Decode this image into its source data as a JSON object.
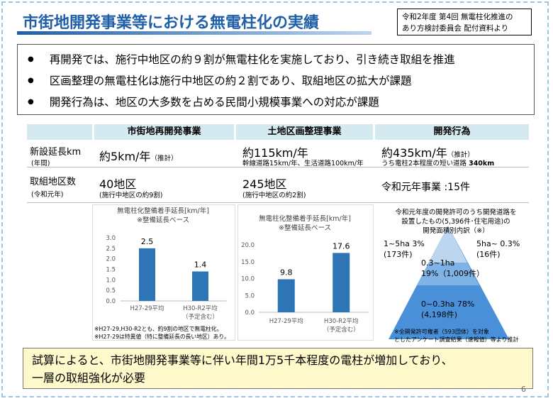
{
  "header": {
    "title": "市街地開発事業等における無電柱化の実績",
    "source": [
      "令和2年度 第4回 無電柱化推進の",
      "あり方検討委員会 配付資料より"
    ]
  },
  "bullets": [
    "再開発では、施行中地区の約９割が無電柱化を実施しており、引き続き取組を推進",
    "区画整理の無電柱化は施行中地区の約２割であり、取組地区の拡大が課題",
    "開発行為は、地区の大多数を占める民間小規模事業への対応が課題"
  ],
  "table": {
    "headers": [
      "市街地再開発事業",
      "土地区画整理事業",
      "開発行為"
    ],
    "rows": [
      {
        "label": "新設延長km",
        "sub": "(年間)",
        "cells": [
          {
            "main": "約5km/年",
            "suffix": "（推計）"
          },
          {
            "main": "約115km/年",
            "note": "幹線道路15km/年、生活道路100km/年"
          },
          {
            "main": "約435km/年",
            "suffix": "（推計）",
            "note": "うち電柱2本程度の短い道路",
            "note_bold": "340km"
          }
        ]
      },
      {
        "label": "取組地区数",
        "sub": "(令和元年)",
        "cells": [
          {
            "main": "40地区",
            "note": "(施行中地区の約9割)"
          },
          {
            "main": "245地区",
            "note": "(施行中地区の約2割)"
          },
          {
            "main": "令和元年事業 :15件"
          }
        ]
      }
    ]
  },
  "charts": [
    {
      "type": "bar",
      "title": [
        "無電柱化整備着手延長[km/年]",
        "※整備延長ベース"
      ],
      "categories": [
        "H27-29平均",
        "H30-R2平均"
      ],
      "category_notes": [
        null,
        "（予定含む）"
      ],
      "values": [
        2.5,
        1.4
      ],
      "color": "#2e75b6",
      "ylim": [
        0,
        3
      ],
      "yticks": [
        {
          "value": 0,
          "label": "0.0"
        },
        {
          "value": 0.5,
          "label": "0.5"
        },
        {
          "value": 1,
          "label": "1.0"
        },
        {
          "value": 1.5,
          "label": "1.5"
        },
        {
          "value": 2,
          "label": "2.0"
        },
        {
          "value": 2.5,
          "label": "2.5"
        },
        {
          "value": 3,
          "label": "3.0"
        }
      ],
      "notes": [
        "※H27-29,H30-R2とも、約9割の地区で無電柱化。",
        "※H27-29は特異値（特に整備延長の長い地区）あり。"
      ]
    },
    {
      "type": "bar",
      "title": [
        "無電柱化整備着手延長[km/年]",
        "※整備延長ベース"
      ],
      "categories": [
        "H27-29平均",
        "H30-R2平均"
      ],
      "category_notes": [
        null,
        "（予定含む）"
      ],
      "values": [
        9.8,
        17.6
      ],
      "color": "#2e75b6",
      "ylim": [
        0,
        20
      ],
      "yticks": [
        {
          "value": 0,
          "label": "0.0"
        },
        {
          "value": 5,
          "label": "5.0"
        },
        {
          "value": 10,
          "label": "10.0"
        },
        {
          "value": 15,
          "label": "15.0"
        },
        {
          "value": 20,
          "label": "20.0"
        }
      ]
    }
  ],
  "pyramid": {
    "title": [
      "令和元年度の開発許可のうち開発道路を",
      "設置したもの(5,396件･住宅用途)の",
      "開発面積別内訳（※）"
    ],
    "segments": [
      [
        "1~5ha 3%",
        "(173件)"
      ],
      [
        "5ha~ 0.3%",
        "(16件)"
      ],
      [
        "0.3~1ha",
        "19%（1,009件）"
      ],
      [
        "0~0.3ha 78%",
        "(4,198件)"
      ]
    ],
    "notes": [
      "※全開発許可権者（593団体）を対象",
      "としたアンケート調査結果（速報値）等より推計"
    ]
  },
  "conclusion": [
    "試算によると、市街地開発事業等に伴い年間1万5千本程度の電柱が増加しており、",
    "一層の取組強化が必要"
  ],
  "page_number": "6"
}
